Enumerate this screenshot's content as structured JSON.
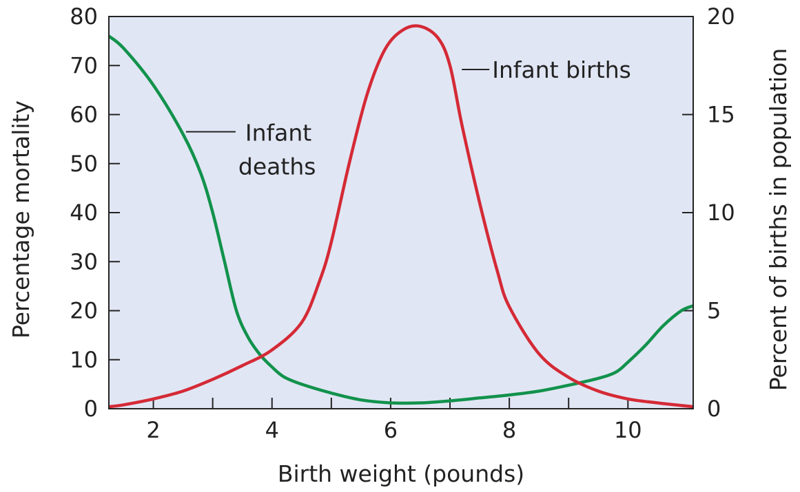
{
  "chart_data": {
    "type": "line",
    "title": "",
    "xlabel": "Birth weight (pounds)",
    "ylabel": "Percentage mortality",
    "y2label": "Percent of births in population",
    "xlim": [
      1.25,
      11.1
    ],
    "ylim": [
      0,
      80
    ],
    "y2lim": [
      0,
      20
    ],
    "x_ticks": [
      2,
      4,
      6,
      8,
      10
    ],
    "x_minor_ticks": [
      3,
      5,
      7,
      9
    ],
    "y_ticks": [
      0,
      10,
      20,
      30,
      40,
      50,
      60,
      70,
      80
    ],
    "y2_ticks": [
      0,
      5,
      10,
      15,
      20
    ],
    "grid": false,
    "background": "#e1e6f4",
    "series": [
      {
        "name": "Infant deaths",
        "axis": "left",
        "color": "#12924c",
        "x": [
          1.25,
          1.5,
          2.0,
          2.5,
          2.8,
          3.0,
          3.2,
          3.4,
          3.6,
          3.8,
          4.0,
          4.2,
          4.5,
          5.0,
          5.5,
          6.0,
          6.5,
          7.0,
          7.5,
          8.0,
          8.5,
          9.0,
          9.5,
          9.8,
          10.0,
          10.3,
          10.6,
          10.9,
          11.1
        ],
        "values": [
          76,
          73.5,
          66,
          56,
          48,
          40,
          30,
          20,
          14.5,
          11,
          8.5,
          6.5,
          5,
          3.2,
          1.8,
          1.2,
          1.2,
          1.6,
          2.2,
          2.8,
          3.6,
          4.8,
          6.2,
          7.5,
          9.5,
          13,
          17,
          20,
          21
        ]
      },
      {
        "name": "Infant births",
        "axis": "right",
        "color": "#d42a36",
        "x": [
          1.25,
          1.5,
          2.0,
          2.5,
          3.0,
          3.5,
          4.0,
          4.5,
          4.8,
          5.0,
          5.3,
          5.6,
          5.9,
          6.2,
          6.5,
          6.8,
          7.0,
          7.2,
          7.5,
          7.8,
          8.0,
          8.5,
          9.0,
          9.5,
          10.0,
          10.5,
          11.1
        ],
        "values": [
          0.1,
          0.2,
          0.5,
          0.9,
          1.5,
          2.2,
          3.0,
          4.4,
          6.5,
          8.5,
          12.5,
          16.0,
          18.3,
          19.3,
          19.5,
          18.9,
          17.5,
          14.5,
          10.5,
          7.0,
          5.2,
          2.8,
          1.6,
          0.9,
          0.5,
          0.3,
          0.1
        ]
      }
    ],
    "annotations": [
      {
        "text": "Infant births",
        "series": "Infant births"
      },
      {
        "text": "Infant deaths",
        "line1": "Infant",
        "line2": "deaths",
        "series": "Infant deaths"
      }
    ]
  }
}
